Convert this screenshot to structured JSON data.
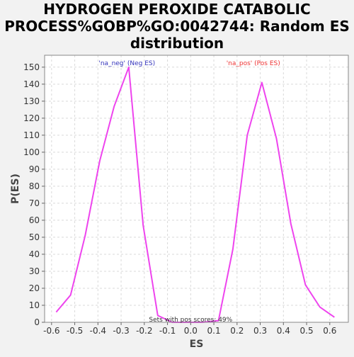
{
  "title_lines": [
    "HYDROGEN PEROXIDE CATABOLIC",
    "PROCESS%GOBP%GO:0042744: Random ES",
    "distribution"
  ],
  "colors": {
    "background": "#f2f2f2",
    "plot_bg": "#ffffff",
    "line": "#ee44ee",
    "neg_label": "#3333bb",
    "pos_label": "#ee3333",
    "grid": "#d9d9d9"
  },
  "chart_data": {
    "type": "line",
    "xlabel": "ES",
    "ylabel": "P(ES)",
    "xlim": [
      -0.63,
      0.68
    ],
    "ylim": [
      0,
      157
    ],
    "xticks": [
      -0.6,
      -0.5,
      -0.4,
      -0.3,
      -0.2,
      -0.1,
      0.0,
      0.1,
      0.2,
      0.3,
      0.4,
      0.5,
      0.6
    ],
    "xtick_labels": [
      "-0.6",
      "-0.5",
      "-0.4",
      "-0.3",
      "-0.2",
      "-0.1",
      "0.0",
      "0.1",
      "0.2",
      "0.3",
      "0.4",
      "0.5",
      "0.6"
    ],
    "yticks": [
      0,
      10,
      20,
      30,
      40,
      50,
      60,
      70,
      80,
      90,
      100,
      110,
      120,
      130,
      140,
      150
    ],
    "ytick_labels": [
      "0",
      "10",
      "20",
      "30",
      "40",
      "50",
      "60",
      "70",
      "80",
      "90",
      "100",
      "110",
      "120",
      "130",
      "140",
      "150"
    ],
    "grid": true,
    "series": [
      {
        "x": [
          -0.58,
          -0.518,
          -0.455,
          -0.392,
          -0.33,
          -0.267,
          -0.205,
          -0.142,
          -0.08,
          0.05,
          0.12,
          0.182,
          0.244,
          0.307,
          0.37,
          0.432,
          0.495,
          0.557,
          0.62
        ],
        "y": [
          6,
          16,
          51,
          95,
          127,
          150,
          57,
          4,
          0,
          0,
          1,
          43,
          110,
          141,
          108,
          58,
          22,
          9,
          3
        ]
      }
    ],
    "annotations": {
      "neg": "'na_neg' (Neg ES)",
      "pos": "'na_pos' (Pos ES)",
      "footer": "Sets with pos scores: 49%"
    }
  }
}
